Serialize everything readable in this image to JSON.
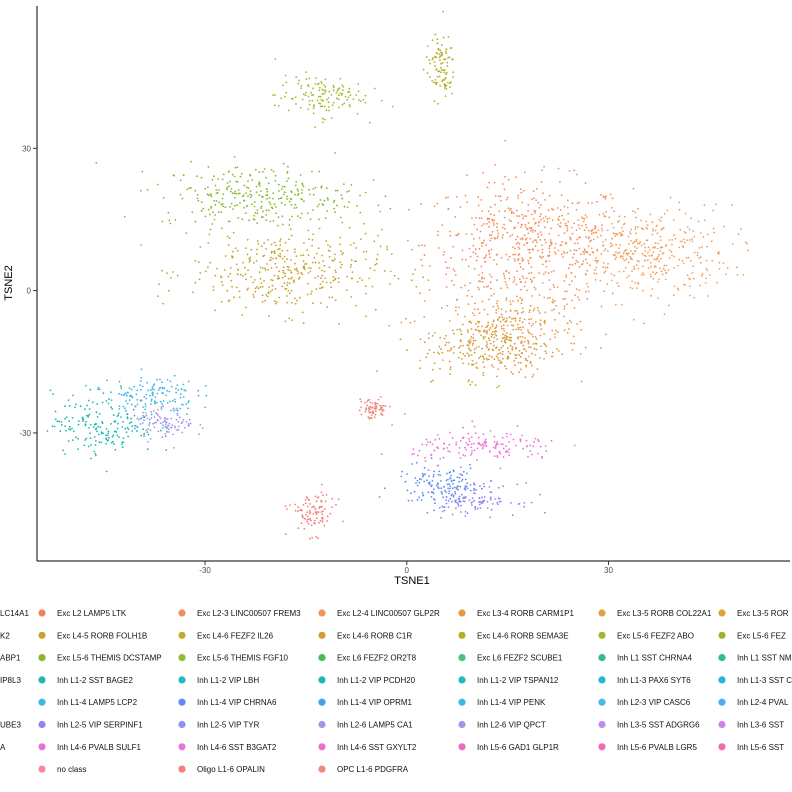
{
  "chart_data": {
    "type": "scatter",
    "xlabel": "TSNE1",
    "ylabel": "TSNE2",
    "xlim": [
      -55,
      57
    ],
    "ylim": [
      -57,
      60
    ],
    "xticks": [
      -30,
      0,
      30
    ],
    "yticks": [
      -30,
      0,
      30
    ],
    "grid": false,
    "legend_position": "bottom",
    "clusters": [
      {
        "name": "Exc L2-3 LINC00507 FREM3",
        "color": "#F28E5C",
        "center": [
          18,
          10
        ],
        "spread": [
          14,
          12
        ]
      },
      {
        "name": "Exc L3-5 RORB COL22A1",
        "color": "#F5A05A",
        "center": [
          35,
          8
        ],
        "spread": [
          12,
          9
        ]
      },
      {
        "name": "Exc L3-4 RORB CARM1P1",
        "color": "#E49A44",
        "center": [
          16,
          -8
        ],
        "spread": [
          9,
          7
        ]
      },
      {
        "name": "Exc L4-5 RORB FOLH1B",
        "color": "#C8A22B",
        "center": [
          -18,
          4
        ],
        "spread": [
          13,
          8
        ]
      },
      {
        "name": "Exc L4-6 RORB C1R",
        "color": "#D39A3A",
        "center": [
          12,
          -12
        ],
        "spread": [
          9,
          6
        ]
      },
      {
        "name": "Exc L5-6 THEMIS DCSTAMP",
        "color": "#86B92B",
        "center": [
          -22,
          20
        ],
        "spread": [
          13,
          6
        ]
      },
      {
        "name": "Exc L5-6 THEMIS FGF10",
        "color": "#9BBE2E",
        "center": [
          -13,
          41
        ],
        "spread": [
          6,
          4
        ]
      },
      {
        "name": "Exc L5-6 FEZF2 ABO",
        "color": "#B6AE22",
        "center": [
          5,
          47
        ],
        "spread": [
          2,
          6
        ]
      },
      {
        "name": "Inh L1-2 VIP PCDH20",
        "color": "#1FB7B2",
        "center": [
          -45,
          -28
        ],
        "spread": [
          7,
          6
        ]
      },
      {
        "name": "Inh L1-4 VIP PENK",
        "color": "#3DB6E2",
        "center": [
          -38,
          -22
        ],
        "spread": [
          6,
          4
        ]
      },
      {
        "name": "Inh L2-6 VIP QPCT",
        "color": "#A594E8",
        "center": [
          -36,
          -28
        ],
        "spread": [
          4,
          3
        ]
      },
      {
        "name": "Inh L4-6 PVALB SULF1",
        "color": "#EE6FD6",
        "center": [
          12,
          -33
        ],
        "spread": [
          10,
          3
        ]
      },
      {
        "name": "Inh L1-4 VIP CHRNA6",
        "color": "#5B8CF0",
        "center": [
          5,
          -41
        ],
        "spread": [
          6,
          4
        ]
      },
      {
        "name": "Inh L2-5 VIP SERPINF1",
        "color": "#8F85F0",
        "center": [
          10,
          -44
        ],
        "spread": [
          6,
          3
        ]
      },
      {
        "name": "Oligo L1-6 OPALIN",
        "color": "#F3807A",
        "center": [
          -14,
          -47
        ],
        "spread": [
          3,
          4
        ]
      },
      {
        "name": "OPC L1-6 PDGFRA",
        "color": "#F0887E",
        "center": [
          -5,
          -25
        ],
        "spread": [
          2,
          2
        ]
      }
    ],
    "legend": [
      [
        "LC14A1",
        "Exc L2 LAMP5 LTK",
        "Exc L2-3 LINC00507 FREM3",
        "Exc L2-4 LINC00507 GLP2R",
        "Exc L3-4 RORB CARM1P1",
        "Exc L3-5 RORB COL22A1",
        "Exc L3-5 ROR"
      ],
      [
        "K2",
        "Exc L4-5 RORB FOLH1B",
        "Exc L4-6 FEZF2 IL26",
        "Exc L4-6 RORB C1R",
        "Exc L4-6 RORB SEMA3E",
        "Exc L5-6 FEZF2 ABO",
        "Exc L5-6 FEZ"
      ],
      [
        "ABP1",
        "Exc L5-6 THEMIS DCSTAMP",
        "Exc L5-6 THEMIS FGF10",
        "Exc L6 FEZF2 OR2T8",
        "Exc L6 FEZF2 SCUBE1",
        "Inh L1 SST CHRNA4",
        "Inh L1 SST NM"
      ],
      [
        "IP8L3",
        "Inh L1-2 SST BAGE2",
        "Inh L1-2 VIP LBH",
        "Inh L1-2 VIP PCDH20",
        "Inh L1-2 VIP TSPAN12",
        "Inh L1-3 PAX6 SYT6",
        "Inh L1-3 SST C"
      ],
      [
        "",
        "Inh L1-4 LAMP5 LCP2",
        "Inh L1-4 VIP CHRNA6",
        "Inh L1-4 VIP OPRM1",
        "Inh L1-4 VIP PENK",
        "Inh L2-3 VIP CASC6",
        "Inh L2-4 PVAL"
      ],
      [
        "UBE3",
        "Inh L2-5 VIP SERPINF1",
        "Inh L2-5 VIP TYR",
        "Inh L2-6 LAMP5 CA1",
        "Inh L2-6 VIP QPCT",
        "Inh L3-5 SST ADGRG6",
        "Inh L3-6 SST"
      ],
      [
        "A",
        "Inh L4-6 PVALB SULF1",
        "Inh L4-6 SST B3GAT2",
        "Inh L4-6 SST GXYLT2",
        "Inh L5-6 GAD1 GLP1R",
        "Inh L5-6 PVALB LGR5",
        "Inh L5-6 SST"
      ],
      [
        "",
        "no class",
        "Oligo L1-6 OPALIN",
        "OPC L1-6 PDGFRA",
        "",
        "",
        ""
      ]
    ],
    "legend_colors": [
      [
        "#F8766D",
        "#F4805D",
        "#F28E5C",
        "#F0955A",
        "#E49A44",
        "#E2A241",
        "#D9A533"
      ],
      [
        "#F8766D",
        "#C8A22B",
        "#C0AC2A",
        "#D39A3A",
        "#B6AE22",
        "#A8B42A",
        "#A3B42C"
      ],
      [
        "#7FB92F",
        "#86B92B",
        "#8CBF35",
        "#4DBA59",
        "#4CC17A",
        "#39B984",
        "#2FBC8E"
      ],
      [
        "#1FB7A6",
        "#22B8B0",
        "#1FBEBF",
        "#1FB7B2",
        "#21BBC3",
        "#25B8CF",
        "#2BB3D9"
      ],
      [
        "#2FB1E0",
        "#3DB6E2",
        "#5B8CF0",
        "#3EA3E8",
        "#3DB6E2",
        "#4FB7EC",
        "#47AFF0"
      ],
      [
        "#7EA1F0",
        "#8F85F0",
        "#8D92F2",
        "#A594E8",
        "#A594E8",
        "#C08CF0",
        "#D37FEA"
      ],
      [
        "#E28BE8",
        "#EE6FD6",
        "#EF73D8",
        "#EC6FCA",
        "#E66DC0",
        "#F069B4",
        "#F06BA8"
      ],
      [
        "#F6A5B8",
        "#F78A9E",
        "#F3807A",
        "#F0887E",
        "#FFFFFF",
        "#FFFFFF",
        "#FFFFFF"
      ]
    ]
  }
}
